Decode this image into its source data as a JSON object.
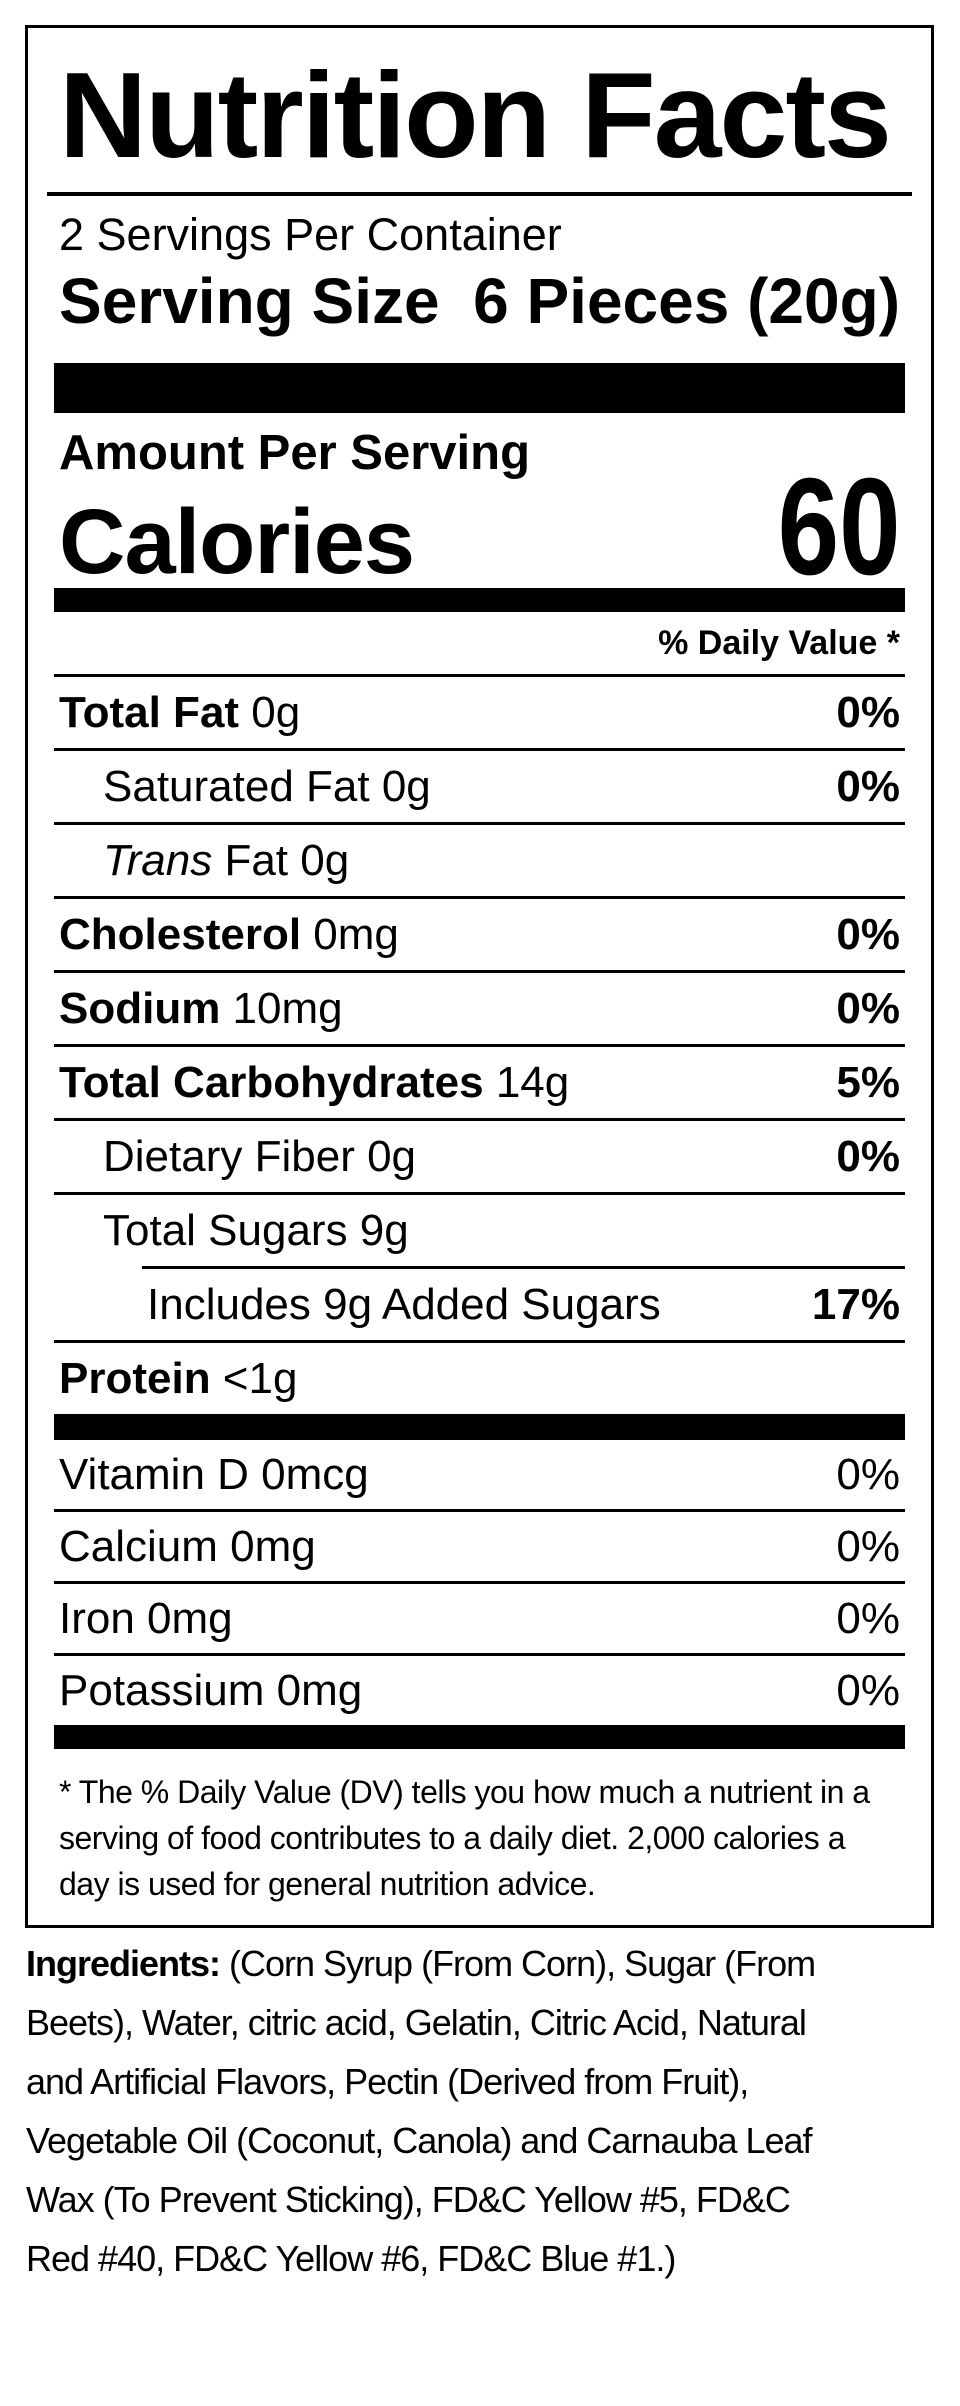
{
  "colors": {
    "text": "#000000",
    "background": "#ffffff",
    "bars": "#000000"
  },
  "label": {
    "title": "Nutrition Facts",
    "servings_per_container": "2 Servings Per Container",
    "serving_size": {
      "label": "Serving Size",
      "value": "6 Pieces (20g)"
    },
    "amount_per_serving": "Amount Per Serving",
    "calories": {
      "label": "Calories",
      "value": "60"
    },
    "daily_value_header": "% Daily Value *",
    "rows": [
      {
        "indent": 0,
        "parts": [
          {
            "t": "Total Fat",
            "b": 1
          },
          {
            "t": " 0g"
          }
        ],
        "pct": "0%",
        "pct_bold": 1,
        "divider": "full"
      },
      {
        "indent": 1,
        "parts": [
          {
            "t": "Saturated Fat 0g"
          }
        ],
        "pct": "0%",
        "pct_bold": 1,
        "divider": "full"
      },
      {
        "indent": 1,
        "parts": [
          {
            "t": "Trans",
            "i": 1
          },
          {
            "t": " Fat 0g"
          }
        ],
        "pct": "",
        "pct_bold": 0,
        "divider": "full"
      },
      {
        "indent": 0,
        "parts": [
          {
            "t": "Cholesterol",
            "b": 1
          },
          {
            "t": " 0mg"
          }
        ],
        "pct": "0%",
        "pct_bold": 1,
        "divider": "full"
      },
      {
        "indent": 0,
        "parts": [
          {
            "t": "Sodium",
            "b": 1
          },
          {
            "t": " 10mg"
          }
        ],
        "pct": "0%",
        "pct_bold": 1,
        "divider": "full"
      },
      {
        "indent": 0,
        "parts": [
          {
            "t": "Total Carbohydrates",
            "b": 1
          },
          {
            "t": " 14g"
          }
        ],
        "pct": "5%",
        "pct_bold": 1,
        "divider": "full"
      },
      {
        "indent": 1,
        "parts": [
          {
            "t": "Dietary Fiber 0g"
          }
        ],
        "pct": "0%",
        "pct_bold": 1,
        "divider": "full"
      },
      {
        "indent": 1,
        "parts": [
          {
            "t": "Total Sugars 9g"
          }
        ],
        "pct": "",
        "pct_bold": 0,
        "divider": "indent"
      },
      {
        "indent": 2,
        "parts": [
          {
            "t": "Includes 9g Added Sugars"
          }
        ],
        "pct": "17%",
        "pct_bold": 1,
        "divider": "full"
      },
      {
        "indent": 0,
        "parts": [
          {
            "t": "Protein",
            "b": 1
          },
          {
            "t": " <1g"
          }
        ],
        "pct": "",
        "pct_bold": 0,
        "divider": "none"
      }
    ],
    "vitamin_rows": [
      {
        "indent": 0,
        "parts": [
          {
            "t": "Vitamin D 0mcg"
          }
        ],
        "pct": "0%",
        "pct_bold": 0,
        "divider": "full"
      },
      {
        "indent": 0,
        "parts": [
          {
            "t": "Calcium 0mg"
          }
        ],
        "pct": "0%",
        "pct_bold": 0,
        "divider": "full"
      },
      {
        "indent": 0,
        "parts": [
          {
            "t": "Iron 0mg"
          }
        ],
        "pct": "0%",
        "pct_bold": 0,
        "divider": "full"
      },
      {
        "indent": 0,
        "parts": [
          {
            "t": "Potassium 0mg"
          }
        ],
        "pct": "0%",
        "pct_bold": 0,
        "divider": "none"
      }
    ],
    "footnote": {
      "lines": [
        "* The % Daily Value (DV) tells you how much a nutrient in a",
        "serving of food contributes to a daily diet. 2,000 calories a",
        "day is used for general nutrition advice."
      ]
    }
  },
  "ingredients": {
    "label": "Ingredients:",
    "lines": [
      "(Corn Syrup (From Corn), Sugar (From",
      "Beets), Water, citric acid, Gelatin, Citric Acid, Natural",
      "and Artificial Flavors, Pectin (Derived from Fruit),",
      "Vegetable Oil (Coconut, Canola) and Carnauba Leaf",
      "Wax (To Prevent Sticking), FD&C Yellow #5, FD&C",
      "Red #40, FD&C Yellow #6, FD&C Blue #1.)"
    ]
  }
}
